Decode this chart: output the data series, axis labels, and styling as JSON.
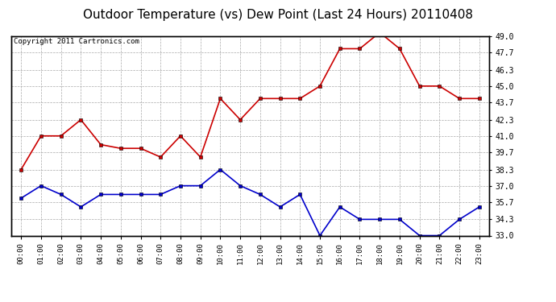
{
  "title": "Outdoor Temperature (vs) Dew Point (Last 24 Hours) 20110408",
  "copyright": "Copyright 2011 Cartronics.com",
  "x_labels": [
    "00:00",
    "01:00",
    "02:00",
    "03:00",
    "04:00",
    "05:00",
    "06:00",
    "07:00",
    "08:00",
    "09:00",
    "10:00",
    "11:00",
    "12:00",
    "13:00",
    "14:00",
    "15:00",
    "16:00",
    "17:00",
    "18:00",
    "19:00",
    "20:00",
    "21:00",
    "22:00",
    "23:00"
  ],
  "temp_data": [
    38.3,
    41.0,
    41.0,
    42.3,
    40.3,
    40.0,
    40.0,
    39.3,
    41.0,
    39.3,
    44.0,
    42.3,
    44.0,
    44.0,
    44.0,
    45.0,
    48.0,
    48.0,
    49.3,
    48.0,
    45.0,
    45.0,
    44.0,
    44.0
  ],
  "dew_data": [
    36.0,
    37.0,
    36.3,
    35.3,
    36.3,
    36.3,
    36.3,
    36.3,
    37.0,
    37.0,
    38.3,
    37.0,
    36.3,
    35.3,
    36.3,
    33.0,
    35.3,
    34.3,
    34.3,
    34.3,
    33.0,
    33.0,
    34.3,
    35.3
  ],
  "temp_color": "#cc0000",
  "dew_color": "#0000cc",
  "bg_color": "#ffffff",
  "plot_bg_color": "#ffffff",
  "grid_color": "#aaaaaa",
  "ylim": [
    33.0,
    49.0
  ],
  "yticks": [
    33.0,
    34.3,
    35.7,
    37.0,
    38.3,
    39.7,
    41.0,
    42.3,
    43.7,
    45.0,
    46.3,
    47.7,
    49.0
  ],
  "title_fontsize": 11,
  "copyright_fontsize": 6.5
}
